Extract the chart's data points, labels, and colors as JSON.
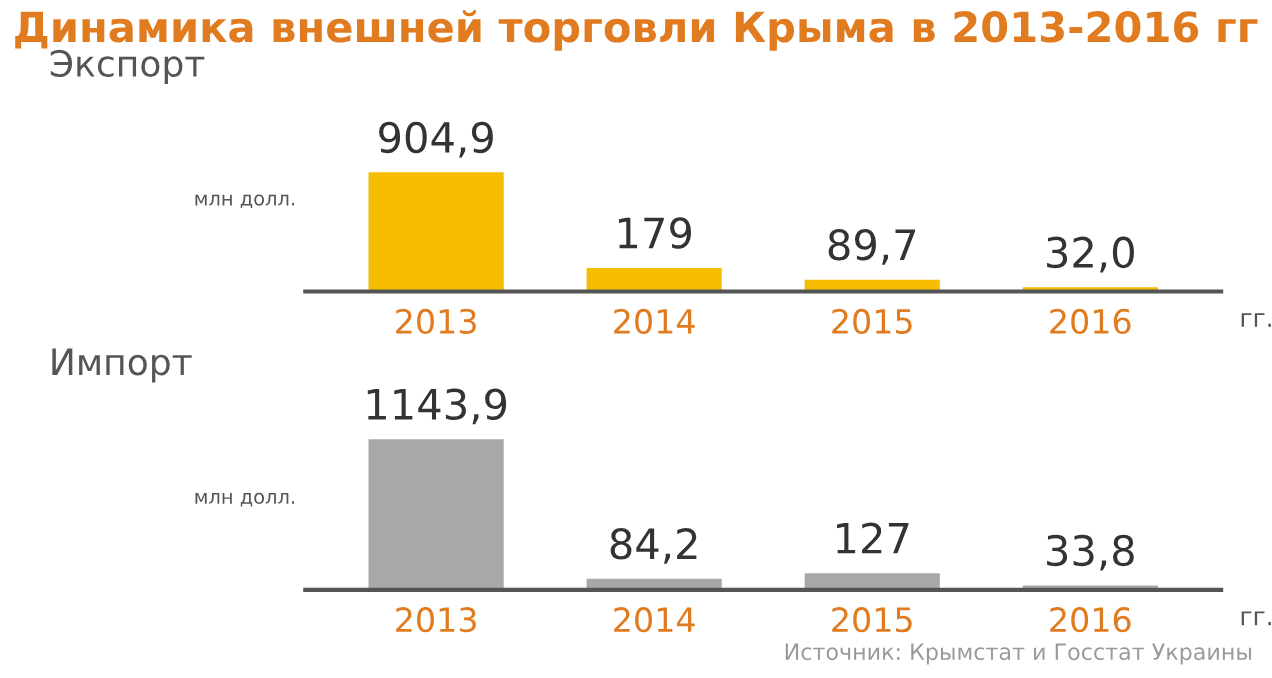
{
  "chart_data": [
    {
      "type": "bar",
      "title": "Динамика внешней торговли Крыма в 2013-2016 гг",
      "subtitle": "Экспорт",
      "ylabel": "млн долл.",
      "xlabel": "гг.",
      "categories": [
        "2013",
        "2014",
        "2015",
        "2016"
      ],
      "values": [
        904.9,
        179,
        89.7,
        32.0
      ],
      "value_labels": [
        "904,9",
        "179",
        "89,7",
        "32,0"
      ],
      "color": "#f7bd00",
      "tick_labels": "x",
      "grid": false,
      "legend": false
    },
    {
      "type": "bar",
      "subtitle": "Импорт",
      "ylabel": "млн долл.",
      "xlabel": "гг.",
      "categories": [
        "2013",
        "2014",
        "2015",
        "2016"
      ],
      "values": [
        1143.9,
        84.2,
        127,
        33.8
      ],
      "value_labels": [
        "1143,9",
        "84,2",
        "127",
        "33,8"
      ],
      "color": "#a8a8a8",
      "tick_labels": "x",
      "grid": false,
      "legend": false,
      "annotations": [
        "Источник: Крымстат и Госстат Украины"
      ]
    }
  ]
}
